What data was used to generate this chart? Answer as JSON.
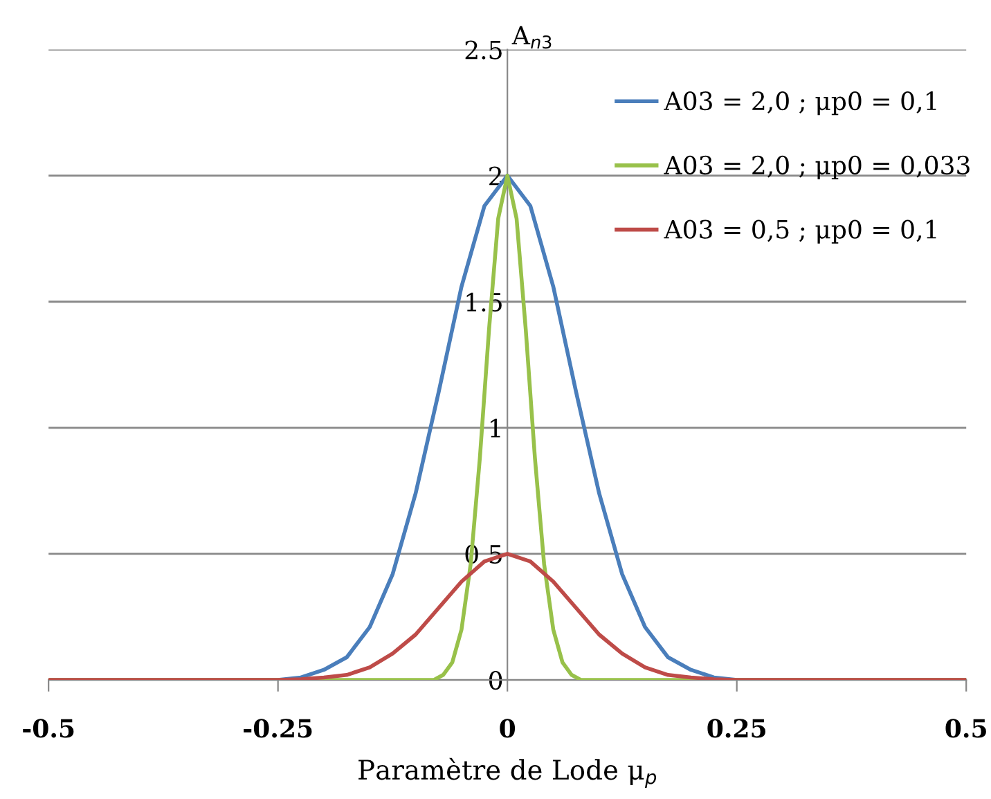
{
  "chart_data": {
    "type": "line",
    "xlabel": "Paramètre de Lode μ$_{p}$",
    "ylabel": "A$_{n3}$",
    "xlim": [
      -0.5,
      0.5
    ],
    "xticks": [
      -0.5,
      -0.25,
      0,
      0.25,
      0.5
    ],
    "ylim": [
      0,
      2.5
    ],
    "yticks": [
      0,
      0.5,
      1,
      1.5,
      2,
      2.5
    ],
    "grid": "y",
    "legend": "top right",
    "marker": "none",
    "line_style": "solid",
    "series": [
      {
        "name": "A03 = 2,0 ; μp0 = 0,1",
        "color": "#4a7ebb",
        "x": [
          -0.5,
          -0.25,
          -0.225,
          -0.2,
          -0.175,
          -0.15,
          -0.125,
          -0.1,
          -0.075,
          -0.05,
          -0.025,
          0,
          0.025,
          0.05,
          0.075,
          0.1,
          0.125,
          0.15,
          0.175,
          0.2,
          0.225,
          0.25,
          0.5
        ],
        "values": [
          0,
          0,
          0.01,
          0.04,
          0.09,
          0.21,
          0.42,
          0.74,
          1.14,
          1.56,
          1.88,
          2,
          1.88,
          1.56,
          1.14,
          0.74,
          0.42,
          0.21,
          0.09,
          0.04,
          0.01,
          0,
          0
        ]
      },
      {
        "name": "A03 = 2,0 ; μp0 = 0,033",
        "color": "#98c14a",
        "x": [
          -0.5,
          -0.08,
          -0.07,
          -0.06,
          -0.05,
          -0.04,
          -0.03,
          -0.02,
          -0.01,
          0,
          0.01,
          0.02,
          0.03,
          0.04,
          0.05,
          0.06,
          0.07,
          0.08,
          0.5
        ],
        "values": [
          0,
          0,
          0.02,
          0.07,
          0.2,
          0.46,
          0.88,
          1.39,
          1.83,
          2,
          1.83,
          1.39,
          0.88,
          0.46,
          0.2,
          0.07,
          0.02,
          0,
          0
        ]
      },
      {
        "name": "A03 = 0,5 ; μp0 = 0,1",
        "color": "#be4b48",
        "x": [
          -0.5,
          -0.25,
          -0.225,
          -0.2,
          -0.175,
          -0.15,
          -0.125,
          -0.1,
          -0.075,
          -0.05,
          -0.025,
          0,
          0.025,
          0.05,
          0.075,
          0.1,
          0.125,
          0.15,
          0.175,
          0.2,
          0.225,
          0.25,
          0.5
        ],
        "values": [
          0,
          0,
          0.003,
          0.01,
          0.02,
          0.05,
          0.105,
          0.18,
          0.285,
          0.39,
          0.47,
          0.5,
          0.47,
          0.39,
          0.285,
          0.18,
          0.105,
          0.05,
          0.02,
          0.01,
          0.003,
          0,
          0
        ]
      }
    ]
  }
}
